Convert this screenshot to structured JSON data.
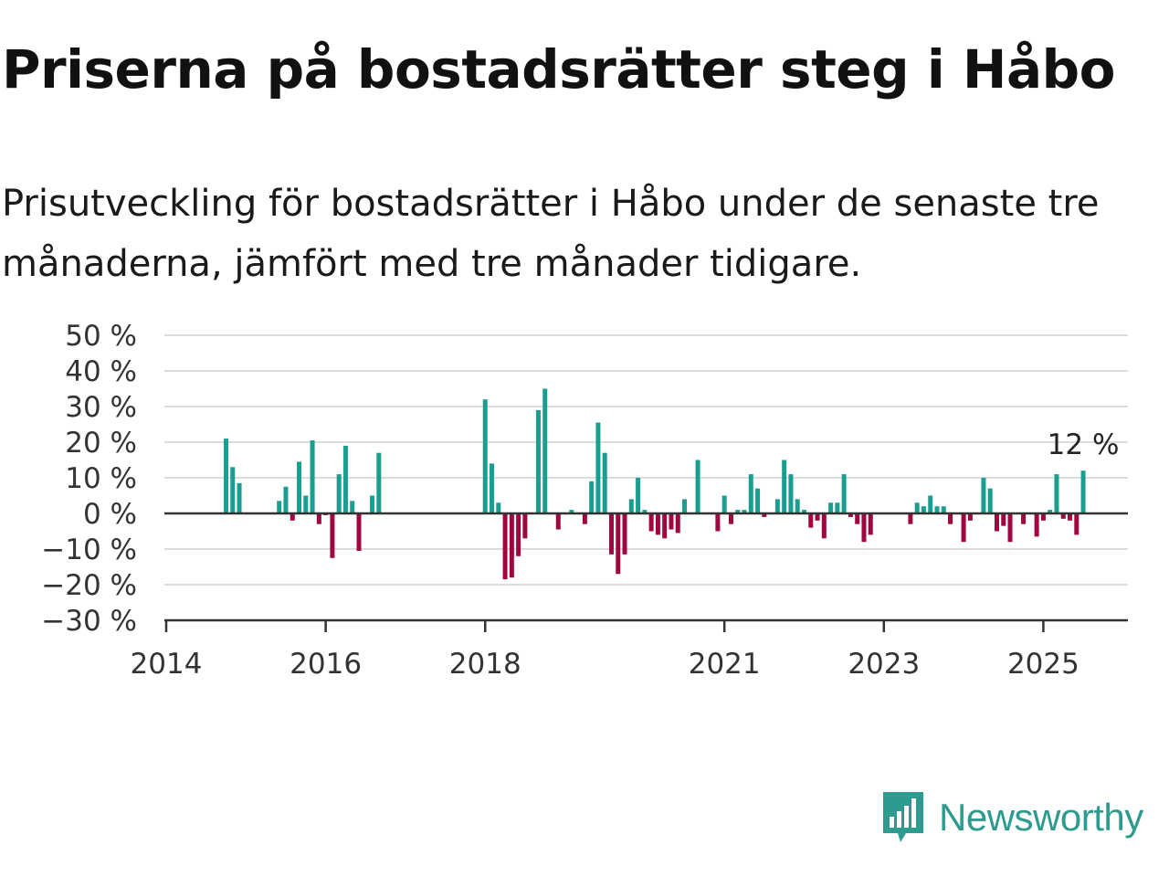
{
  "title": "Priserna på bostadsrätter steg i Håbo",
  "subtitle": "Prisutveckling för bostadsrätter i Håbo under de senaste tre månaderna, jämfört med tre månader tidigare.",
  "brand": {
    "name": "Newsworthy",
    "icon": "newsworthy-logo-icon"
  },
  "colors": {
    "positive": "#1a9e8f",
    "negative": "#a0063f",
    "grid": "#dcdcdc",
    "axis": "#333333",
    "brand": "#2e9b8f"
  },
  "chart_data": {
    "type": "bar",
    "ylim": [
      -30,
      50
    ],
    "yticks": [
      50,
      40,
      30,
      20,
      10,
      0,
      -10,
      -20,
      -30
    ],
    "ytick_labels": [
      "50 %",
      "40 %",
      "30 %",
      "20 %",
      "10 %",
      "0 %",
      "−10 %",
      "−20 %",
      "−30 %"
    ],
    "xticks": [
      "2014",
      "2016",
      "2018",
      "2021",
      "2023",
      "2025"
    ],
    "xtick_positions": [
      "2014-01",
      "2016-01",
      "2018-01",
      "2021-01",
      "2023-01",
      "2025-01"
    ],
    "xlim": [
      "2014-01",
      "2026-02"
    ],
    "grid": true,
    "unit": "%",
    "annotation": {
      "month": "2025-07",
      "label": "12 %"
    },
    "months": [
      "2014-10",
      "2014-11",
      "2014-12",
      "2015-06",
      "2015-07",
      "2015-08",
      "2015-09",
      "2015-10",
      "2015-11",
      "2015-12",
      "2016-01",
      "2016-02",
      "2016-03",
      "2016-04",
      "2016-05",
      "2016-06",
      "2016-07",
      "2016-08",
      "2016-09",
      "2018-01",
      "2018-02",
      "2018-03",
      "2018-04",
      "2018-05",
      "2018-06",
      "2018-07",
      "2018-08",
      "2018-09",
      "2018-10",
      "2018-11",
      "2018-12",
      "2019-01",
      "2019-02",
      "2019-03",
      "2019-04",
      "2019-05",
      "2019-06",
      "2019-07",
      "2019-08",
      "2019-09",
      "2019-10",
      "2019-11",
      "2019-12",
      "2020-01",
      "2020-02",
      "2020-03",
      "2020-04",
      "2020-05",
      "2020-06",
      "2020-07",
      "2020-08",
      "2020-09",
      "2020-10",
      "2020-11",
      "2020-12",
      "2021-01",
      "2021-02",
      "2021-03",
      "2021-04",
      "2021-05",
      "2021-06",
      "2021-07",
      "2021-08",
      "2021-09",
      "2021-10",
      "2021-11",
      "2021-12",
      "2022-01",
      "2022-02",
      "2022-03",
      "2022-04",
      "2022-05",
      "2022-06",
      "2022-07",
      "2022-08",
      "2022-09",
      "2022-10",
      "2022-11",
      "2022-12",
      "2023-05",
      "2023-06",
      "2023-07",
      "2023-08",
      "2023-09",
      "2023-10",
      "2023-11",
      "2023-12",
      "2024-01",
      "2024-02",
      "2024-03",
      "2024-04",
      "2024-05",
      "2024-06",
      "2024-07",
      "2024-08",
      "2024-09",
      "2024-10",
      "2024-11",
      "2024-12",
      "2025-01",
      "2025-02",
      "2025-03",
      "2025-04",
      "2025-05",
      "2025-06",
      "2025-07"
    ],
    "values": [
      21,
      13,
      8.5,
      3.5,
      7.5,
      -2,
      14.5,
      5,
      20.5,
      -3,
      -0.5,
      -12.5,
      11,
      19,
      3.5,
      -10.5,
      0,
      5,
      17,
      32,
      14,
      3,
      -18.5,
      -18,
      -12,
      -7,
      0,
      29,
      35,
      0,
      -4.5,
      0,
      1,
      0,
      -3,
      9,
      25.5,
      17,
      -11.5,
      -17,
      -11.5,
      4,
      10,
      1,
      -5,
      -6,
      -7,
      -4.5,
      -5.5,
      4,
      0,
      15,
      0,
      0,
      -5,
      5,
      -3,
      1,
      1,
      11,
      7,
      -1,
      0,
      4,
      15,
      11,
      4,
      1,
      -4,
      -2,
      -7,
      3,
      3,
      11,
      -1,
      -3,
      -8,
      -6,
      0,
      -3,
      3,
      2,
      5,
      2,
      2,
      -3,
      0,
      -8,
      -2,
      0,
      10,
      7,
      -5,
      -3.5,
      -8,
      0,
      -3,
      0,
      -6.5,
      -2,
      1,
      11,
      -1.5,
      -2,
      -6,
      12
    ]
  }
}
